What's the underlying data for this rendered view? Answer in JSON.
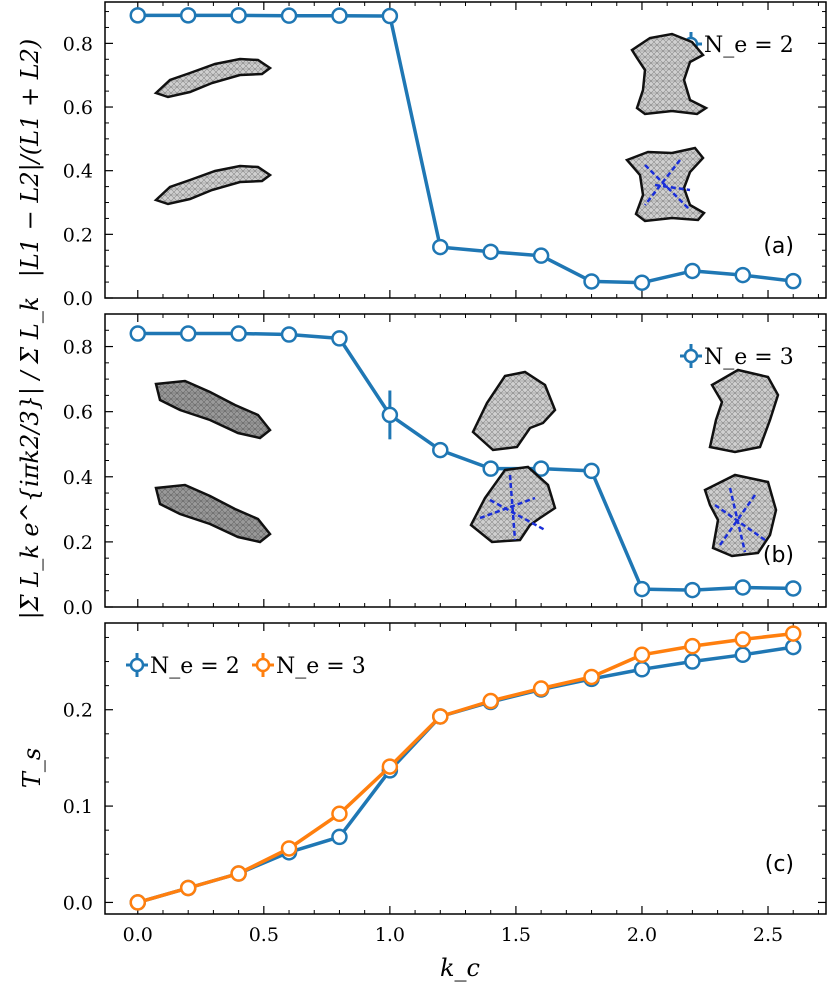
{
  "chart_data": [
    {
      "type": "line",
      "panel": "(a)",
      "ylabel": "|L1 − L2|/(L1 + L2)",
      "ylim": [
        0,
        0.93
      ],
      "yticks": [
        "0.0",
        "0.2",
        "0.4",
        "0.6",
        "0.8"
      ],
      "xlim": [
        -0.13,
        2.73
      ],
      "legend_location": "top-right",
      "series": [
        {
          "name": "N_e = 2",
          "color": "#1f77b4",
          "x": [
            0.0,
            0.2,
            0.4,
            0.6,
            0.8,
            1.0,
            1.2,
            1.4,
            1.6,
            1.8,
            2.0,
            2.2,
            2.4,
            2.6
          ],
          "y": [
            0.888,
            0.888,
            0.888,
            0.887,
            0.887,
            0.886,
            0.16,
            0.145,
            0.133,
            0.052,
            0.048,
            0.085,
            0.072,
            0.053
          ],
          "err": [
            0,
            0,
            0,
            0,
            0,
            0,
            0,
            0.025,
            0,
            0,
            0,
            0,
            0,
            0
          ]
        }
      ]
    },
    {
      "type": "line",
      "panel": "(b)",
      "ylabel": "|Σ L_k e^{iπk2/3}| / Σ L_k",
      "ylim": [
        0,
        0.9
      ],
      "yticks": [
        "0.0",
        "0.2",
        "0.4",
        "0.6",
        "0.8"
      ],
      "xlim": [
        -0.13,
        2.73
      ],
      "legend_location": "top-right",
      "series": [
        {
          "name": "N_e = 3",
          "color": "#1f77b4",
          "x": [
            0.0,
            0.2,
            0.4,
            0.6,
            0.8,
            1.0,
            1.2,
            1.4,
            1.6,
            1.8,
            2.0,
            2.2,
            2.4,
            2.6
          ],
          "y": [
            0.84,
            0.84,
            0.84,
            0.837,
            0.825,
            0.59,
            0.482,
            0.425,
            0.425,
            0.418,
            0.055,
            0.052,
            0.06,
            0.057
          ],
          "err": [
            0,
            0,
            0,
            0,
            0,
            0.075,
            0,
            0,
            0,
            0,
            0,
            0,
            0,
            0
          ]
        }
      ]
    },
    {
      "type": "line",
      "panel": "(c)",
      "xlabel": "k_c",
      "ylabel": "T_s",
      "ylim": [
        -0.012,
        0.29
      ],
      "yticks": [
        "0.0",
        "0.1",
        "0.2"
      ],
      "xticks": [
        "0.0",
        "0.5",
        "1.0",
        "1.5",
        "2.0",
        "2.5"
      ],
      "xlim": [
        -0.13,
        2.73
      ],
      "legend_location": "top-left",
      "series": [
        {
          "name": "N_e = 2",
          "color": "#1f77b4",
          "x": [
            0.0,
            0.2,
            0.4,
            0.6,
            0.8,
            1.0,
            1.2,
            1.4,
            1.6,
            1.8,
            2.0,
            2.2,
            2.4,
            2.6
          ],
          "y": [
            0.0,
            0.015,
            0.03,
            0.052,
            0.068,
            0.137,
            0.193,
            0.208,
            0.221,
            0.232,
            0.242,
            0.25,
            0.257,
            0.265
          ],
          "err": [
            0,
            0,
            0,
            0,
            0,
            0,
            0,
            0,
            0,
            0,
            0,
            0,
            0,
            0
          ]
        },
        {
          "name": "N_e = 3",
          "color": "#ff7f0e",
          "x": [
            0.0,
            0.2,
            0.4,
            0.6,
            0.8,
            1.0,
            1.2,
            1.4,
            1.6,
            1.8,
            2.0,
            2.2,
            2.4,
            2.6
          ],
          "y": [
            0.0,
            0.015,
            0.03,
            0.056,
            0.092,
            0.141,
            0.193,
            0.209,
            0.222,
            0.234,
            0.257,
            0.266,
            0.273,
            0.279
          ],
          "err": [
            0,
            0,
            0,
            0,
            0.007,
            0,
            0,
            0,
            0,
            0,
            0,
            0,
            0,
            0
          ]
        }
      ]
    }
  ]
}
